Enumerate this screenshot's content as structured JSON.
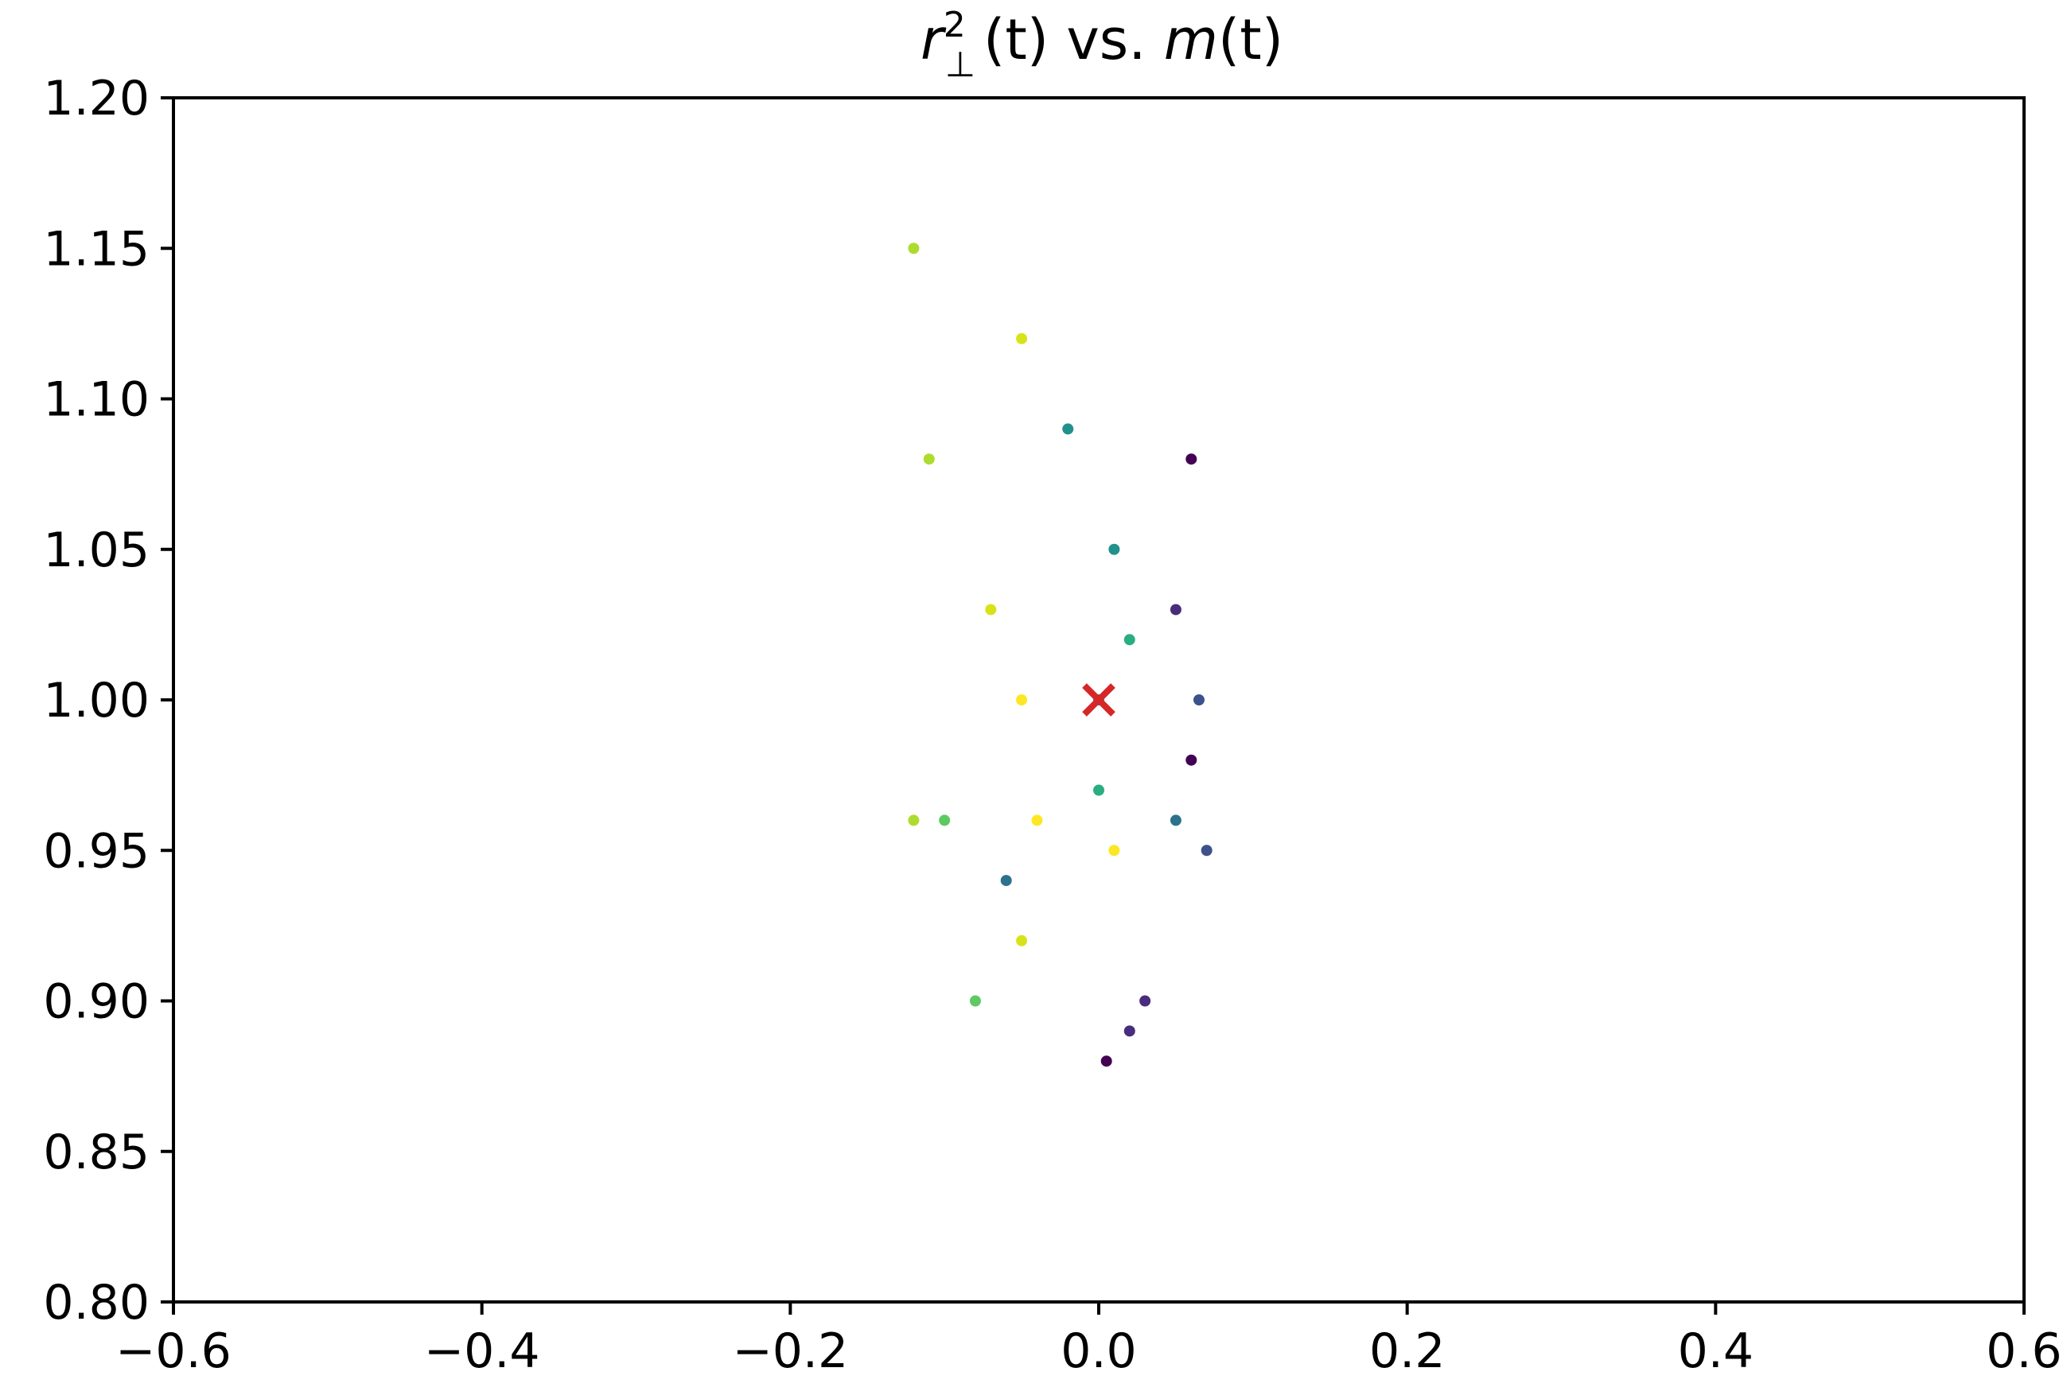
{
  "chart_data": {
    "type": "scatter",
    "title": {
      "r_symbol": "r",
      "superscript": "2",
      "subscript": "⊥",
      "part1": "(t) vs. ",
      "m_symbol": "m",
      "part2": "(t)"
    },
    "xlabel": "",
    "ylabel": "",
    "xlim": [
      -0.6,
      0.6
    ],
    "ylim": [
      0.8,
      1.2
    ],
    "x_ticks": [
      -0.6,
      -0.4,
      -0.2,
      0.0,
      0.2,
      0.4,
      0.6
    ],
    "x_tick_labels": [
      "−0.6",
      "−0.4",
      "−0.2",
      "0.0",
      "0.2",
      "0.4",
      "0.6"
    ],
    "y_ticks": [
      0.8,
      0.85,
      0.9,
      0.95,
      1.0,
      1.05,
      1.1,
      1.15,
      1.2
    ],
    "y_tick_labels": [
      "0.80",
      "0.85",
      "0.90",
      "0.95",
      "1.00",
      "1.05",
      "1.10",
      "1.15",
      "1.20"
    ],
    "grid": false,
    "colormap": "viridis",
    "series": [
      {
        "color": "#440154",
        "points": [
          [
            0.06,
            1.08
          ],
          [
            0.06,
            0.98
          ],
          [
            0.005,
            0.88
          ]
        ]
      },
      {
        "color": "#472d7b",
        "points": [
          [
            0.05,
            1.03
          ],
          [
            0.03,
            0.9
          ],
          [
            0.02,
            0.89
          ]
        ]
      },
      {
        "color": "#3b528b",
        "points": [
          [
            0.065,
            1.0
          ],
          [
            0.07,
            0.95
          ]
        ]
      },
      {
        "color": "#2c728e",
        "points": [
          [
            0.05,
            0.96
          ],
          [
            -0.06,
            0.94
          ]
        ]
      },
      {
        "color": "#21918c",
        "points": [
          [
            -0.02,
            1.09
          ],
          [
            0.01,
            1.05
          ],
          [
            0.0,
            1.0
          ]
        ]
      },
      {
        "color": "#28ae80",
        "points": [
          [
            0.02,
            1.02
          ],
          [
            0.0,
            0.97
          ]
        ]
      },
      {
        "color": "#5ec962",
        "points": [
          [
            -0.08,
            0.9
          ],
          [
            -0.1,
            0.96
          ]
        ]
      },
      {
        "color": "#addc30",
        "points": [
          [
            -0.12,
            1.15
          ],
          [
            -0.11,
            1.08
          ],
          [
            -0.12,
            0.96
          ]
        ]
      },
      {
        "color": "#d8e219",
        "points": [
          [
            -0.05,
            1.12
          ],
          [
            -0.07,
            1.03
          ],
          [
            -0.05,
            0.92
          ]
        ]
      },
      {
        "color": "#fde725",
        "points": [
          [
            -0.05,
            1.0
          ],
          [
            -0.04,
            0.96
          ],
          [
            0.01,
            0.95
          ]
        ]
      }
    ],
    "marker": {
      "x": 0.0,
      "y": 1.0,
      "symbol": "x",
      "color": "#d62728"
    }
  }
}
